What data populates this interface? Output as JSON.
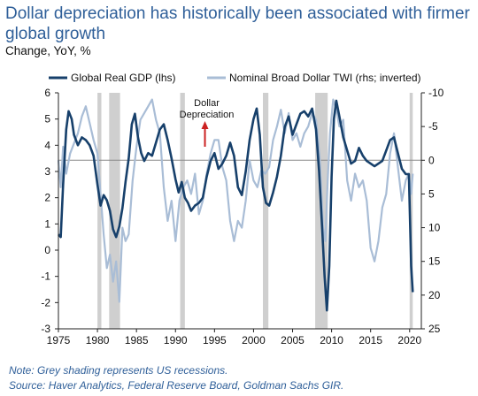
{
  "header": {
    "title": "Dollar depreciation has historically been associated with firmer global growth",
    "subtitle": "Change, YoY, %"
  },
  "notes": {
    "line1": "Note: Grey shading represents US recessions.",
    "line2": "Source: Haver Analytics, Federal Reserve Board, Goldman Sachs GIR."
  },
  "colors": {
    "title": "#2f5f99",
    "gdp_line": "#17406b",
    "dollar_line": "#a9bdd6",
    "recession": "#cfcfcf",
    "arrow": "#cc2222",
    "zero_line": "#888888"
  },
  "chart_data": {
    "type": "line",
    "legend_position": "top",
    "annotation": {
      "text": "Dollar Depreciation",
      "lines": [
        "Dollar",
        "Depreciation"
      ],
      "at_x": 1994,
      "points": "up"
    },
    "x_ticks": [
      1975,
      1980,
      1985,
      1990,
      1995,
      2000,
      2005,
      2010,
      2015,
      2020
    ],
    "xlim": [
      1975,
      2021.5
    ],
    "y_left": {
      "label": "Global Real GDP (lhs)",
      "ylim": [
        -3,
        6
      ],
      "ticks": [
        -3,
        -2,
        -1,
        0,
        1,
        2,
        3,
        4,
        5,
        6
      ]
    },
    "y_right": {
      "label": "Nominal Broad Dollar TWI (rhs; inverted)",
      "inverted": true,
      "ylim": [
        -10,
        25
      ],
      "ticks": [
        -10,
        -5,
        0,
        5,
        10,
        15,
        20,
        25
      ]
    },
    "recessions": [
      [
        1980.0,
        1980.5
      ],
      [
        1981.5,
        1982.9
      ],
      [
        1990.6,
        1991.2
      ],
      [
        2001.2,
        2001.9
      ],
      [
        2007.9,
        2009.5
      ],
      [
        2020.0,
        2020.4
      ]
    ],
    "series": [
      {
        "name": "Global Real GDP (lhs)",
        "axis": "left",
        "points": [
          [
            1975.0,
            0.6
          ],
          [
            1975.3,
            0.5
          ],
          [
            1975.6,
            2.5
          ],
          [
            1976.0,
            4.6
          ],
          [
            1976.3,
            5.3
          ],
          [
            1976.7,
            5.0
          ],
          [
            1977.0,
            4.4
          ],
          [
            1977.5,
            4.0
          ],
          [
            1978.0,
            4.3
          ],
          [
            1978.5,
            4.2
          ],
          [
            1979.0,
            4.0
          ],
          [
            1979.5,
            3.6
          ],
          [
            1980.0,
            2.5
          ],
          [
            1980.4,
            1.7
          ],
          [
            1980.8,
            2.1
          ],
          [
            1981.2,
            1.9
          ],
          [
            1981.6,
            1.5
          ],
          [
            1982.0,
            0.8
          ],
          [
            1982.4,
            0.5
          ],
          [
            1982.8,
            0.9
          ],
          [
            1983.2,
            1.6
          ],
          [
            1983.6,
            2.6
          ],
          [
            1984.0,
            3.5
          ],
          [
            1984.4,
            4.8
          ],
          [
            1984.8,
            5.2
          ],
          [
            1985.2,
            4.3
          ],
          [
            1985.6,
            3.7
          ],
          [
            1986.0,
            3.4
          ],
          [
            1986.5,
            3.7
          ],
          [
            1987.0,
            3.6
          ],
          [
            1987.5,
            4.1
          ],
          [
            1988.0,
            4.6
          ],
          [
            1988.5,
            4.8
          ],
          [
            1989.0,
            4.2
          ],
          [
            1989.5,
            3.5
          ],
          [
            1990.0,
            2.7
          ],
          [
            1990.4,
            2.2
          ],
          [
            1990.8,
            2.6
          ],
          [
            1991.2,
            2.0
          ],
          [
            1991.6,
            1.8
          ],
          [
            1992.0,
            1.5
          ],
          [
            1992.5,
            1.7
          ],
          [
            1993.0,
            1.8
          ],
          [
            1993.5,
            2.0
          ],
          [
            1994.0,
            2.8
          ],
          [
            1994.5,
            3.4
          ],
          [
            1995.0,
            3.7
          ],
          [
            1995.5,
            3.1
          ],
          [
            1996.0,
            3.3
          ],
          [
            1996.5,
            3.6
          ],
          [
            1997.0,
            4.1
          ],
          [
            1997.5,
            3.6
          ],
          [
            1998.0,
            2.4
          ],
          [
            1998.5,
            2.1
          ],
          [
            1999.0,
            3.0
          ],
          [
            1999.5,
            4.2
          ],
          [
            2000.0,
            5.0
          ],
          [
            2000.4,
            5.4
          ],
          [
            2000.8,
            4.4
          ],
          [
            2001.2,
            2.4
          ],
          [
            2001.6,
            1.8
          ],
          [
            2002.0,
            1.7
          ],
          [
            2002.5,
            2.2
          ],
          [
            2003.0,
            2.8
          ],
          [
            2003.5,
            3.6
          ],
          [
            2004.0,
            4.7
          ],
          [
            2004.5,
            5.1
          ],
          [
            2005.0,
            4.4
          ],
          [
            2005.5,
            4.8
          ],
          [
            2006.0,
            5.2
          ],
          [
            2006.5,
            5.3
          ],
          [
            2007.0,
            5.1
          ],
          [
            2007.5,
            5.4
          ],
          [
            2008.0,
            4.6
          ],
          [
            2008.4,
            3.0
          ],
          [
            2008.8,
            0.8
          ],
          [
            2009.1,
            -1.0
          ],
          [
            2009.4,
            -2.3
          ],
          [
            2009.7,
            -0.6
          ],
          [
            2010.0,
            2.8
          ],
          [
            2010.3,
            5.0
          ],
          [
            2010.6,
            5.7
          ],
          [
            2011.0,
            5.1
          ],
          [
            2011.5,
            4.3
          ],
          [
            2012.0,
            3.8
          ],
          [
            2012.5,
            3.3
          ],
          [
            2013.0,
            3.4
          ],
          [
            2013.5,
            3.9
          ],
          [
            2014.0,
            3.6
          ],
          [
            2014.5,
            3.4
          ],
          [
            2015.0,
            3.3
          ],
          [
            2015.5,
            3.2
          ],
          [
            2016.0,
            3.3
          ],
          [
            2016.5,
            3.4
          ],
          [
            2017.0,
            3.8
          ],
          [
            2017.5,
            4.2
          ],
          [
            2018.0,
            4.3
          ],
          [
            2018.5,
            3.7
          ],
          [
            2019.0,
            3.1
          ],
          [
            2019.5,
            2.9
          ],
          [
            2019.9,
            2.9
          ],
          [
            2020.2,
            -0.6
          ],
          [
            2020.4,
            -1.6
          ]
        ]
      },
      {
        "name": "Nominal Broad Dollar TWI (rhs; inverted)",
        "axis": "right",
        "points": [
          [
            1975.0,
            0.0
          ],
          [
            1975.3,
            4.0
          ],
          [
            1975.6,
            -2.0
          ],
          [
            1976.0,
            2.0
          ],
          [
            1976.5,
            -1.0
          ],
          [
            1977.0,
            -2.5
          ],
          [
            1977.5,
            -4.0
          ],
          [
            1978.0,
            -6.5
          ],
          [
            1978.5,
            -8.0
          ],
          [
            1979.0,
            -5.5
          ],
          [
            1979.5,
            -3.0
          ],
          [
            1980.0,
            -1.0
          ],
          [
            1980.4,
            5.0
          ],
          [
            1980.8,
            11.0
          ],
          [
            1981.2,
            16.0
          ],
          [
            1981.6,
            14.0
          ],
          [
            1982.0,
            18.0
          ],
          [
            1982.4,
            15.0
          ],
          [
            1982.8,
            21.0
          ],
          [
            1983.2,
            10.0
          ],
          [
            1983.6,
            12.0
          ],
          [
            1984.0,
            11.0
          ],
          [
            1984.5,
            3.0
          ],
          [
            1985.0,
            -2.0
          ],
          [
            1985.5,
            -6.0
          ],
          [
            1986.0,
            -7.0
          ],
          [
            1986.5,
            -8.0
          ],
          [
            1987.0,
            -9.0
          ],
          [
            1987.5,
            -6.0
          ],
          [
            1988.0,
            -4.0
          ],
          [
            1988.5,
            4.0
          ],
          [
            1989.0,
            9.0
          ],
          [
            1989.5,
            6.0
          ],
          [
            1990.0,
            12.0
          ],
          [
            1990.5,
            6.0
          ],
          [
            1991.0,
            4.0
          ],
          [
            1991.5,
            3.0
          ],
          [
            1992.0,
            5.0
          ],
          [
            1992.5,
            2.0
          ],
          [
            1993.0,
            8.0
          ],
          [
            1993.5,
            6.0
          ],
          [
            1994.0,
            2.0
          ],
          [
            1994.5,
            -1.0
          ],
          [
            1995.0,
            -3.0
          ],
          [
            1995.5,
            -3.0
          ],
          [
            1996.0,
            1.0
          ],
          [
            1996.5,
            3.0
          ],
          [
            1997.0,
            9.0
          ],
          [
            1997.5,
            12.0
          ],
          [
            1998.0,
            9.0
          ],
          [
            1998.5,
            10.0
          ],
          [
            1999.0,
            6.0
          ],
          [
            1999.5,
            0.0
          ],
          [
            2000.0,
            3.0
          ],
          [
            2000.5,
            4.0
          ],
          [
            2001.0,
            1.5
          ],
          [
            2001.5,
            2.0
          ],
          [
            2002.0,
            1.0
          ],
          [
            2002.5,
            -3.0
          ],
          [
            2003.0,
            -5.0
          ],
          [
            2003.5,
            -7.5
          ],
          [
            2004.0,
            -4.0
          ],
          [
            2004.5,
            -7.0
          ],
          [
            2005.0,
            -3.0
          ],
          [
            2005.5,
            -4.0
          ],
          [
            2006.0,
            -2.0
          ],
          [
            2006.5,
            -4.0
          ],
          [
            2007.0,
            -5.0
          ],
          [
            2007.5,
            -7.0
          ],
          [
            2008.0,
            -6.0
          ],
          [
            2008.5,
            0.0
          ],
          [
            2008.9,
            10.0
          ],
          [
            2009.2,
            12.0
          ],
          [
            2009.5,
            3.0
          ],
          [
            2009.8,
            -4.0
          ],
          [
            2010.2,
            -9.0
          ],
          [
            2010.6,
            -7.5
          ],
          [
            2011.0,
            -5.0
          ],
          [
            2011.5,
            -6.0
          ],
          [
            2012.0,
            3.0
          ],
          [
            2012.5,
            6.0
          ],
          [
            2013.0,
            2.0
          ],
          [
            2013.5,
            4.0
          ],
          [
            2014.0,
            3.0
          ],
          [
            2014.5,
            6.0
          ],
          [
            2015.0,
            13.0
          ],
          [
            2015.5,
            15.0
          ],
          [
            2016.0,
            12.0
          ],
          [
            2016.5,
            7.0
          ],
          [
            2017.0,
            5.0
          ],
          [
            2017.5,
            -1.0
          ],
          [
            2018.0,
            -4.0
          ],
          [
            2018.5,
            1.0
          ],
          [
            2019.0,
            6.0
          ],
          [
            2019.5,
            3.0
          ],
          [
            2019.9,
            2.0
          ],
          [
            2020.2,
            5.0
          ],
          [
            2020.4,
            2.0
          ]
        ]
      }
    ]
  }
}
